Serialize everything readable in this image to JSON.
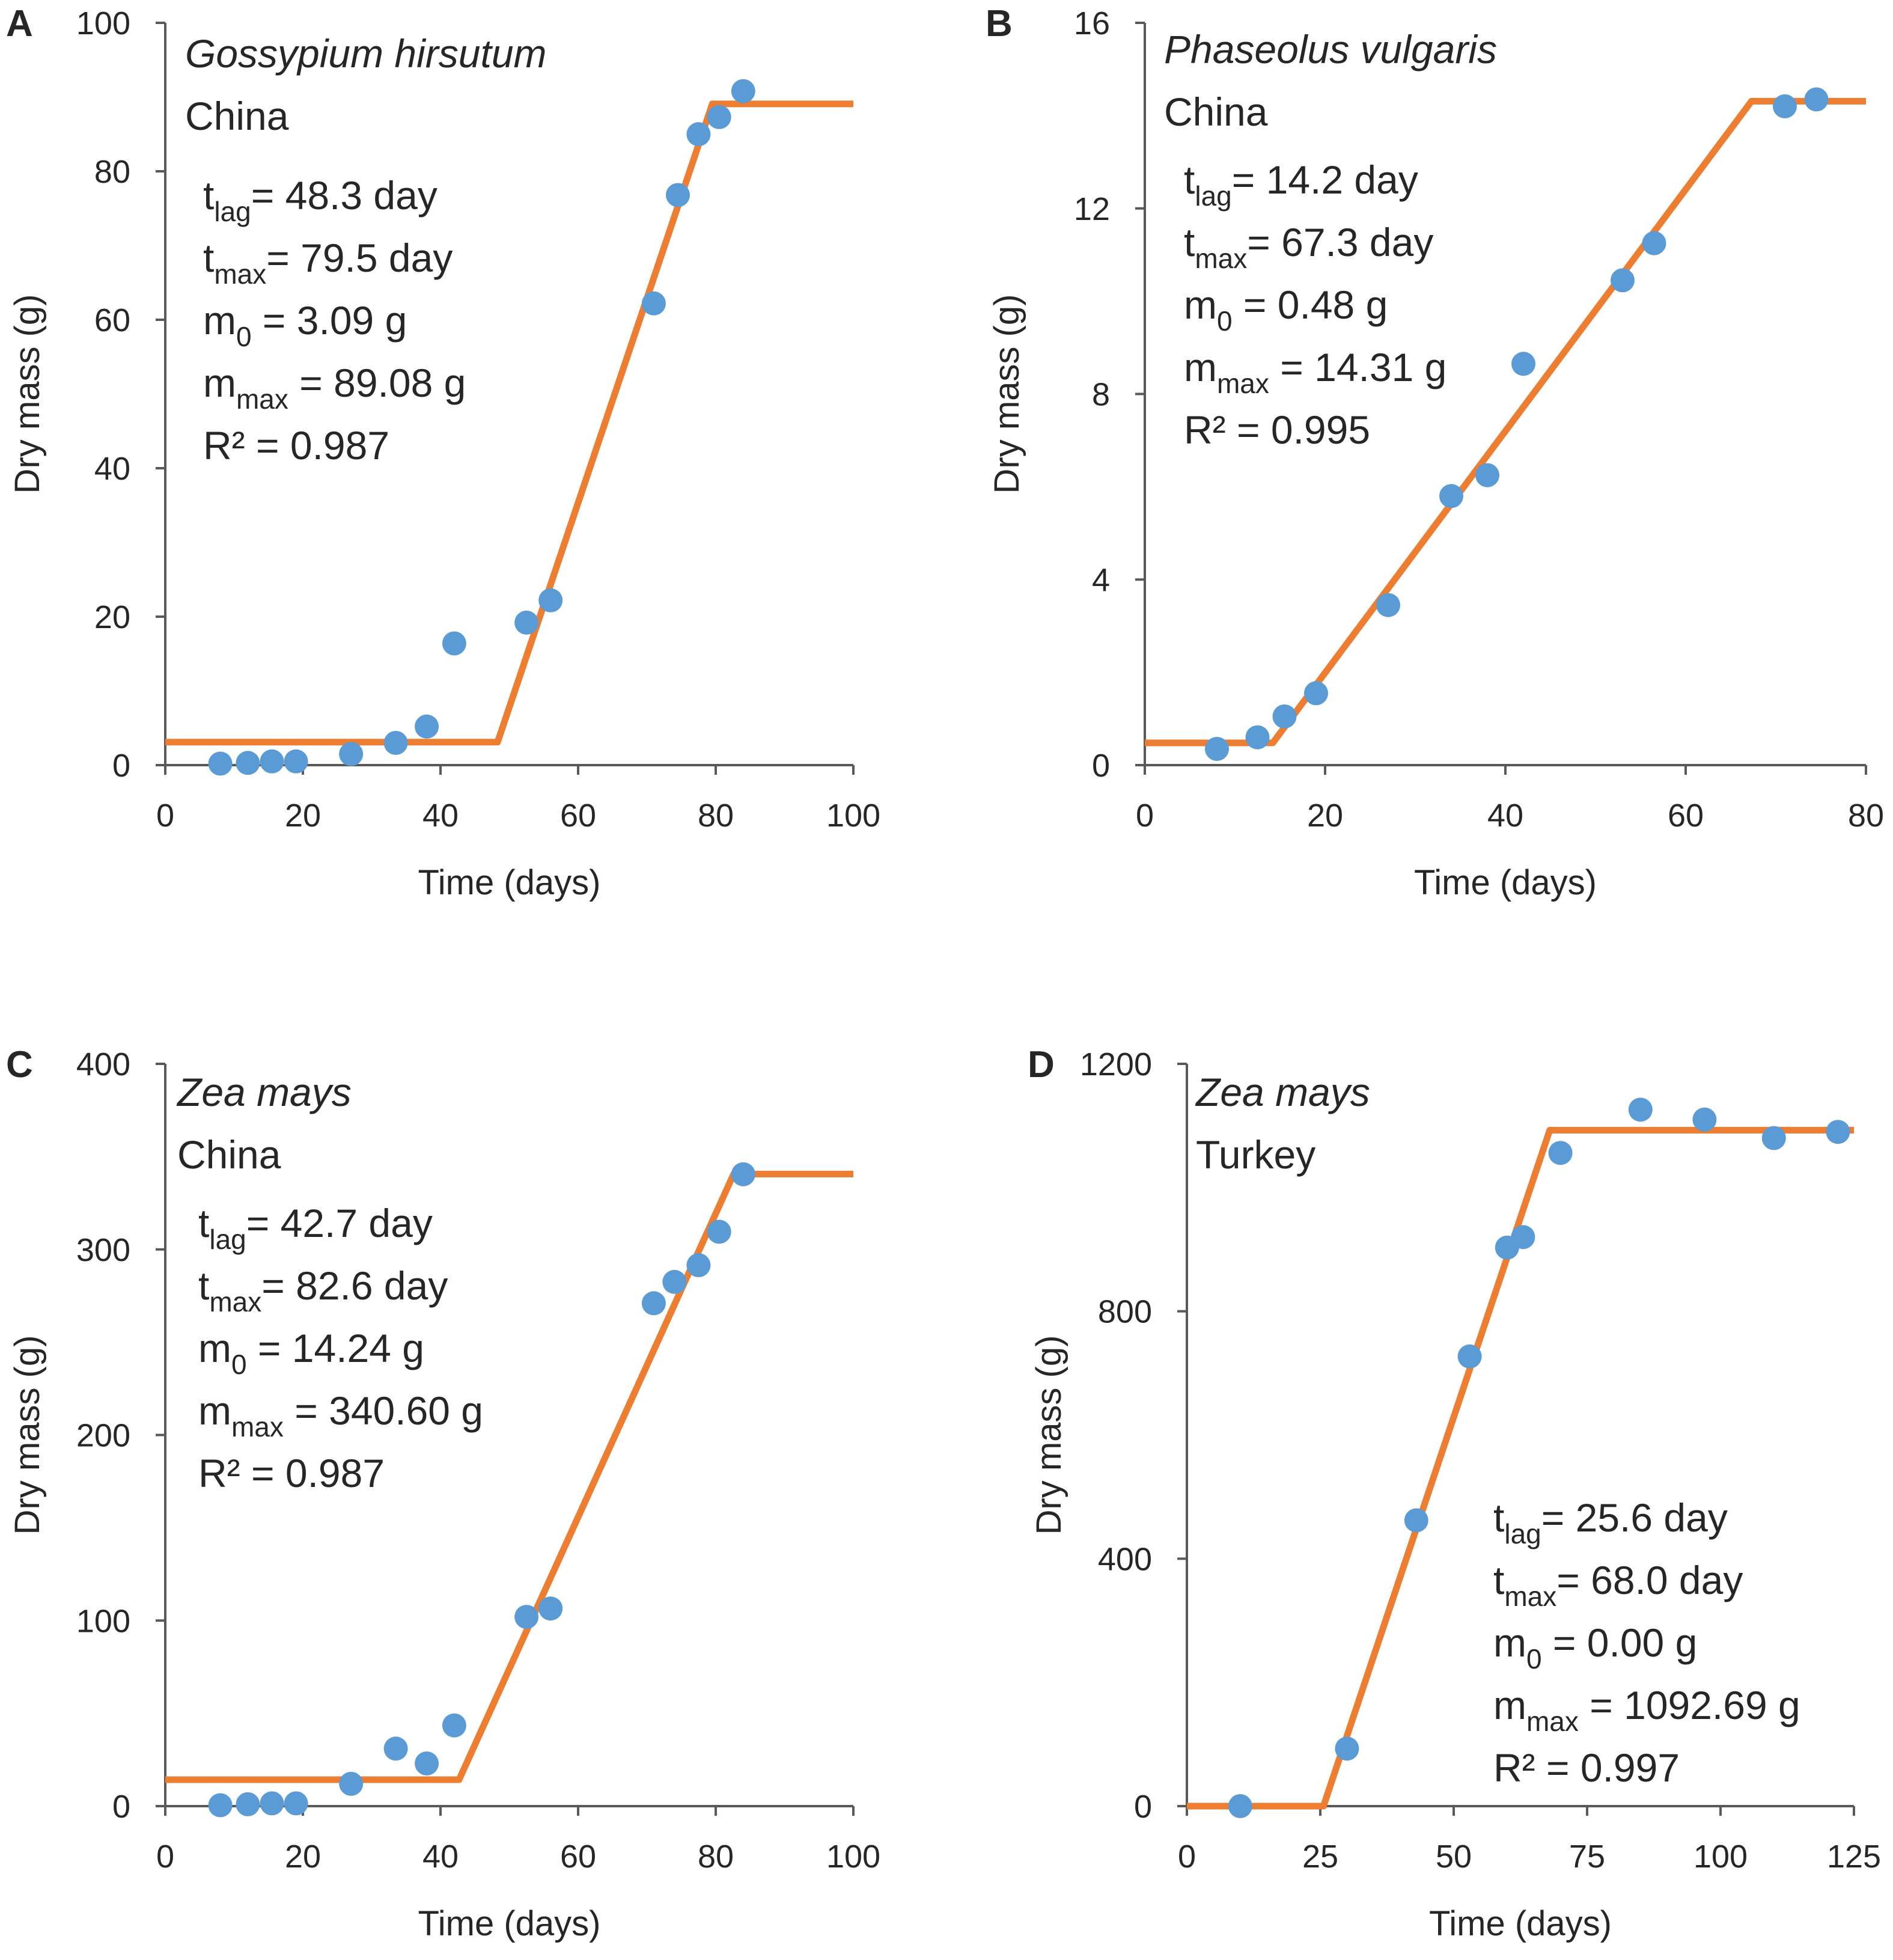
{
  "colors": {
    "fit": "#ED7D31",
    "points": "#5B9BD5",
    "axis": "#595959",
    "text": "#262626"
  },
  "chart_data": [
    {
      "type": "scatter",
      "panel": "A",
      "species": "Gossypium hirsutum",
      "place": "China",
      "xlabel": "Time (days)",
      "ylabel": "Dry mass (g)",
      "xlim": [
        0,
        100
      ],
      "ylim": [
        0,
        100
      ],
      "xticks": [
        0,
        20,
        40,
        60,
        80,
        100
      ],
      "yticks": [
        0,
        20,
        40,
        60,
        80,
        100
      ],
      "params": [
        {
          "sym": "t",
          "sub": "lag",
          "rest": "= 48.3 day"
        },
        {
          "sym": "t",
          "sub": "max",
          "rest": "= 79.5 day"
        },
        {
          "sym": "m",
          "sub": "0",
          "rest": " = 3.09 g"
        },
        {
          "sym": "m",
          "sub": "max",
          "rest": " = 89.08 g"
        },
        {
          "sym": "R² = 0.987",
          "sub": "",
          "rest": ""
        }
      ],
      "series": [
        {
          "name": "observed",
          "x": [
            8,
            12,
            15.5,
            19,
            27,
            33.5,
            38,
            42,
            52.5,
            56,
            71,
            74.5,
            77.5,
            80.5,
            84
          ],
          "y": [
            0.2,
            0.3,
            0.5,
            0.5,
            1.5,
            3,
            5.2,
            16.4,
            19.2,
            22.2,
            62.2,
            76.8,
            85,
            87.3,
            90.8
          ]
        },
        {
          "name": "fit",
          "x": [
            0,
            48.3,
            79.5,
            100
          ],
          "y": [
            3.09,
            3.09,
            89.08,
            89.08
          ]
        }
      ]
    },
    {
      "type": "scatter",
      "panel": "B",
      "species": "Phaseolus vulgaris",
      "place": "China",
      "xlabel": "Time (days)",
      "ylabel": "Dry mass (g)",
      "xlim": [
        0,
        80
      ],
      "ylim": [
        0,
        16
      ],
      "xticks": [
        0,
        20,
        40,
        60,
        80
      ],
      "yticks": [
        0,
        4,
        8,
        12,
        16
      ],
      "params": [
        {
          "sym": "t",
          "sub": "lag",
          "rest": "= 14.2 day"
        },
        {
          "sym": "t",
          "sub": "max",
          "rest": "= 67.3 day"
        },
        {
          "sym": "m",
          "sub": "0",
          "rest": " = 0.48 g"
        },
        {
          "sym": "m",
          "sub": "max",
          "rest": " = 14.31 g"
        },
        {
          "sym": "R² = 0.995",
          "sub": "",
          "rest": ""
        }
      ],
      "series": [
        {
          "name": "observed",
          "x": [
            8,
            12.5,
            15.5,
            19,
            27,
            34,
            38,
            42,
            53,
            56.5,
            71,
            74.5
          ],
          "y": [
            0.35,
            0.6,
            1.05,
            1.55,
            3.45,
            5.8,
            6.25,
            8.65,
            10.45,
            11.25,
            14.2,
            14.35
          ]
        },
        {
          "name": "fit",
          "x": [
            0,
            14.2,
            67.3,
            80
          ],
          "y": [
            0.48,
            0.48,
            14.31,
            14.31
          ]
        }
      ]
    },
    {
      "type": "scatter",
      "panel": "C",
      "species": "Zea mays",
      "place": "China",
      "xlabel": "Time (days)",
      "ylabel": "Dry mass (g)",
      "xlim": [
        0,
        100
      ],
      "ylim": [
        0,
        400
      ],
      "xticks": [
        0,
        20,
        40,
        60,
        80,
        100
      ],
      "yticks": [
        0,
        100,
        200,
        300,
        400
      ],
      "params": [
        {
          "sym": "t",
          "sub": "lag",
          "rest": "= 42.7 day"
        },
        {
          "sym": "t",
          "sub": "max",
          "rest": "= 82.6 day"
        },
        {
          "sym": "m",
          "sub": "0",
          "rest": " = 14.24 g"
        },
        {
          "sym": "m",
          "sub": "max",
          "rest": " = 340.60 g"
        },
        {
          "sym": "R² = 0.987",
          "sub": "",
          "rest": ""
        }
      ],
      "series": [
        {
          "name": "observed",
          "x": [
            8,
            12,
            15.5,
            19,
            27,
            33.5,
            38,
            42,
            52.5,
            56,
            71,
            74,
            77.5,
            80.5,
            84
          ],
          "y": [
            0.5,
            1,
            1.5,
            1.5,
            12,
            31,
            23,
            43.5,
            102,
            106.5,
            271,
            282.5,
            291.5,
            309.5,
            340.5
          ]
        },
        {
          "name": "fit",
          "x": [
            0,
            42.7,
            82.6,
            100
          ],
          "y": [
            14.24,
            14.24,
            340.6,
            340.6
          ]
        }
      ]
    },
    {
      "type": "scatter",
      "panel": "D",
      "species": "Zea mays",
      "place": "Turkey",
      "xlabel": "Time (days)",
      "ylabel": "Dry mass (g)",
      "xlim": [
        0,
        125
      ],
      "ylim": [
        0,
        1200
      ],
      "xticks": [
        0,
        25,
        50,
        75,
        100,
        125
      ],
      "yticks": [
        0,
        400,
        800,
        1200
      ],
      "params": [
        {
          "sym": "t",
          "sub": "lag",
          "rest": "= 25.6 day"
        },
        {
          "sym": "t",
          "sub": "max",
          "rest": "= 68.0 day"
        },
        {
          "sym": "m",
          "sub": "0",
          "rest": " = 0.00 g"
        },
        {
          "sym": "m",
          "sub": "max",
          "rest": " = 1092.69 g"
        },
        {
          "sym": "R² = 0.997",
          "sub": "",
          "rest": ""
        }
      ],
      "series": [
        {
          "name": "observed",
          "x": [
            10,
            30,
            43,
            53,
            60,
            63,
            70,
            85,
            97,
            110,
            122
          ],
          "y": [
            0,
            93,
            462,
            727,
            903,
            920,
            1056,
            1126,
            1110,
            1080,
            1090
          ]
        },
        {
          "name": "fit",
          "x": [
            0,
            25.6,
            68.0,
            125
          ],
          "y": [
            0,
            0,
            1092.69,
            1092.69
          ]
        }
      ]
    }
  ]
}
